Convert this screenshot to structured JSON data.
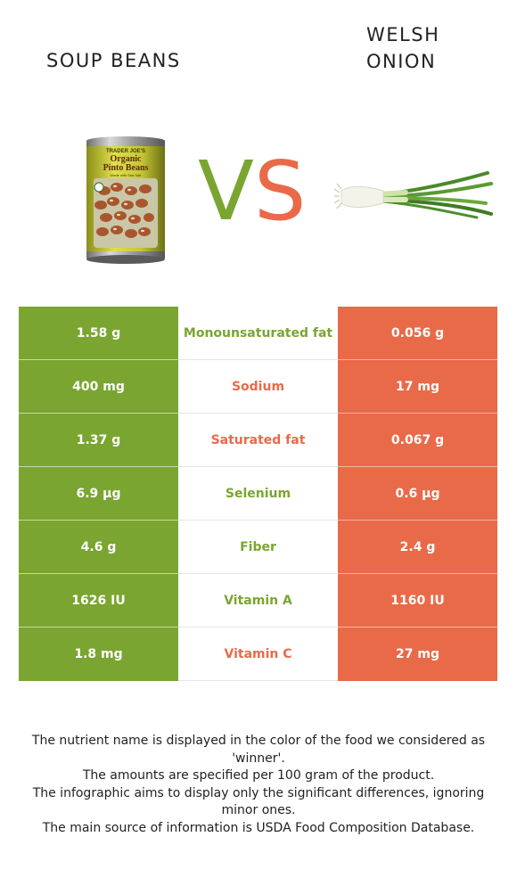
{
  "food_left": {
    "name": "SOUP BEANS"
  },
  "food_right": {
    "name": "WELSH ONION"
  },
  "vs": {
    "v": "V",
    "s": "S"
  },
  "colors": {
    "left": "#7aa531",
    "right": "#e96a48"
  },
  "rows": [
    {
      "left": "1.58 g",
      "nutrient": "Monounsaturated fat",
      "right": "0.056 g",
      "winner": "left"
    },
    {
      "left": "400 mg",
      "nutrient": "Sodium",
      "right": "17 mg",
      "winner": "right"
    },
    {
      "left": "1.37 g",
      "nutrient": "Saturated fat",
      "right": "0.067 g",
      "winner": "right"
    },
    {
      "left": "6.9 µg",
      "nutrient": "Selenium",
      "right": "0.6 µg",
      "winner": "left"
    },
    {
      "left": "4.6 g",
      "nutrient": "Fiber",
      "right": "2.4 g",
      "winner": "left"
    },
    {
      "left": "1626 IU",
      "nutrient": "Vitamin A",
      "right": "1160 IU",
      "winner": "left"
    },
    {
      "left": "1.8 mg",
      "nutrient": "Vitamin C",
      "right": "27 mg",
      "winner": "right"
    }
  ],
  "can_label": {
    "brand": "TRADER JOE'S",
    "line1": "Organic",
    "line2": "Pinto Beans",
    "sub": "Made with Sea Salt"
  },
  "footer": {
    "line1": "The nutrient name is displayed in the color of the food we considered as 'winner'.",
    "line2": "The amounts are specified per 100 gram of the product.",
    "line3": "The infographic aims to display only the significant differences, ignoring minor ones.",
    "line4": "The main source of information is USDA Food Composition Database."
  }
}
